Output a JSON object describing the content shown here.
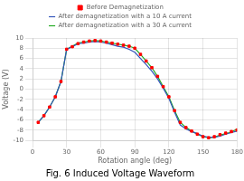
{
  "chart_data": {
    "type": "line",
    "title": "Fig. 6 Induced Voltage Waveform",
    "x_label": "Rotation angle (deg)",
    "y_label": "Voltage (V)",
    "x": [
      5,
      10,
      15,
      20,
      25,
      30,
      35,
      40,
      45,
      50,
      55,
      60,
      65,
      70,
      75,
      80,
      85,
      90,
      95,
      100,
      105,
      110,
      115,
      120,
      125,
      130,
      135,
      140,
      145,
      150,
      155,
      160,
      165,
      170,
      175,
      180
    ],
    "series": [
      {
        "name": "Before Demagnetization",
        "color": "#ff0000",
        "marker": "square",
        "line_style": "none",
        "values": [
          -6.5,
          -5.2,
          -3.5,
          -1.5,
          1.5,
          7.8,
          8.3,
          8.9,
          9.2,
          9.4,
          9.5,
          9.4,
          9.2,
          9.0,
          8.8,
          8.6,
          8.4,
          8.0,
          6.8,
          5.5,
          4.2,
          2.5,
          0.5,
          -1.5,
          -4.2,
          -6.5,
          -7.5,
          -8.2,
          -8.8,
          -9.3,
          -9.5,
          -9.3,
          -8.9,
          -8.6,
          -8.3,
          -8.0
        ]
      },
      {
        "name": "After demagnetization with a 10 A current",
        "color": "#3355bb",
        "line_style": "solid",
        "values": [
          -6.5,
          -5.2,
          -3.5,
          -1.5,
          1.5,
          7.8,
          8.3,
          8.9,
          9.0,
          9.2,
          9.3,
          9.2,
          9.0,
          8.7,
          8.4,
          8.2,
          7.8,
          7.2,
          6.0,
          4.8,
          3.5,
          2.0,
          0.2,
          -1.8,
          -4.5,
          -7.0,
          -7.8,
          -8.3,
          -8.7,
          -9.2,
          -9.4,
          -9.4,
          -9.2,
          -8.8,
          -8.5,
          -8.2
        ]
      },
      {
        "name": "After demagnetization with a 30 A current",
        "color": "#22aa22",
        "line_style": "solid",
        "values": [
          -6.5,
          -5.2,
          -3.5,
          -1.5,
          1.5,
          7.8,
          8.4,
          9.0,
          9.2,
          9.4,
          9.5,
          9.4,
          9.2,
          9.0,
          8.8,
          8.6,
          8.4,
          8.0,
          6.8,
          5.5,
          4.2,
          2.5,
          0.5,
          -1.5,
          -4.2,
          -6.5,
          -7.5,
          -8.2,
          -8.8,
          -9.3,
          -9.5,
          -9.4,
          -9.0,
          -8.7,
          -8.4,
          -7.8
        ]
      }
    ],
    "xlim": [
      0,
      180
    ],
    "ylim": [
      -10,
      10
    ],
    "xticks": [
      0,
      30,
      60,
      90,
      120,
      150,
      180
    ],
    "yticks": [
      -10,
      -8,
      -6,
      -4,
      -2,
      0,
      2,
      4,
      6,
      8,
      10
    ],
    "grid": true,
    "legend": "top"
  }
}
